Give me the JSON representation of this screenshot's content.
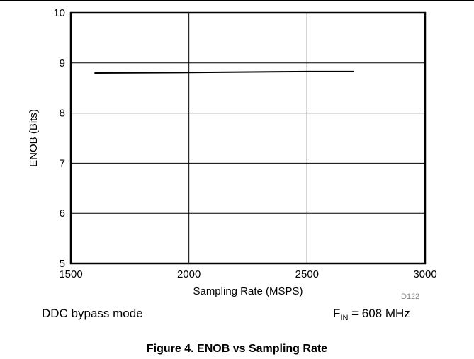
{
  "chart_data": {
    "type": "line",
    "title": "",
    "xlabel": "Sampling Rate (MSPS)",
    "ylabel": "ENOB (Bits)",
    "xlim": [
      1500,
      3000
    ],
    "ylim": [
      5,
      10
    ],
    "xticks": [
      1500,
      2000,
      2500,
      3000
    ],
    "yticks": [
      5,
      6,
      7,
      8,
      9,
      10
    ],
    "grid": true,
    "series": [
      {
        "x": [
          1600,
          2000,
          2500,
          2700
        ],
        "y": [
          8.8,
          8.81,
          8.83,
          8.83
        ]
      }
    ],
    "colors": {
      "line": "#000000",
      "grid": "#000000"
    }
  },
  "figure_code": "D122",
  "notes": {
    "mode": "DDC bypass mode",
    "fin_prefix": "F",
    "fin_sub": "IN",
    "fin_value": " = 608 MHz"
  },
  "caption": "Figure 4. ENOB vs Sampling Rate"
}
